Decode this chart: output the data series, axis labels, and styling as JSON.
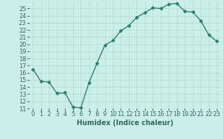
{
  "x": [
    0,
    1,
    2,
    3,
    4,
    5,
    6,
    7,
    8,
    9,
    10,
    11,
    12,
    13,
    14,
    15,
    16,
    17,
    18,
    19,
    20,
    21,
    22,
    23
  ],
  "y": [
    16.5,
    14.8,
    14.7,
    13.1,
    13.2,
    11.2,
    11.1,
    14.6,
    17.3,
    19.9,
    20.5,
    21.9,
    22.6,
    23.8,
    24.4,
    25.1,
    25.0,
    25.6,
    25.7,
    24.6,
    24.5,
    23.3,
    21.3,
    20.4
  ],
  "line_color": "#2e7d6e",
  "marker": "D",
  "marker_size": 2.5,
  "bg_color": "#cceee8",
  "grid_color": "#aaddcc",
  "xlabel": "Humidex (Indice chaleur)",
  "xlabel_fontsize": 7,
  "tick_fontsize": 6,
  "ylim": [
    11,
    26
  ],
  "yticks": [
    11,
    12,
    13,
    14,
    15,
    16,
    17,
    18,
    19,
    20,
    21,
    22,
    23,
    24,
    25
  ],
  "xticks": [
    0,
    1,
    2,
    3,
    4,
    5,
    6,
    7,
    8,
    9,
    10,
    11,
    12,
    13,
    14,
    15,
    16,
    17,
    18,
    19,
    20,
    21,
    22,
    23
  ]
}
